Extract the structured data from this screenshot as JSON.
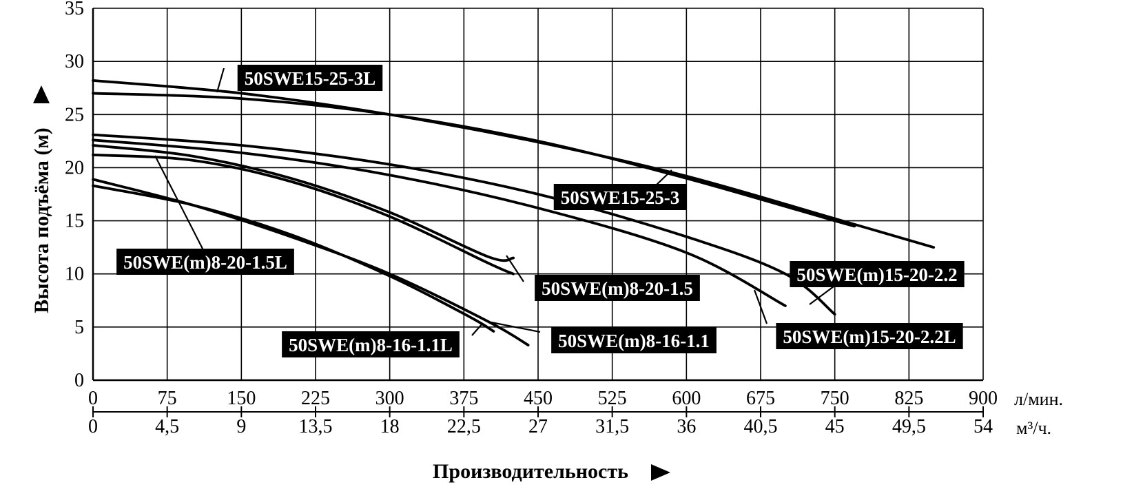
{
  "chart_data": {
    "type": "line",
    "xlabel": "Производительность",
    "ylabel": "Высота подъёма (м)",
    "x_unit_primary": "л/мин.",
    "x_unit_secondary": "м³/ч.",
    "x_ticks_primary": [
      "0",
      "75",
      "150",
      "225",
      "300",
      "375",
      "450",
      "525",
      "600",
      "675",
      "750",
      "825",
      "900"
    ],
    "x_ticks_secondary": [
      "0",
      "4,5",
      "9",
      "13,5",
      "18",
      "22,5",
      "27",
      "31,5",
      "36",
      "40,5",
      "45",
      "49,5",
      "54"
    ],
    "y_ticks": [
      "0",
      "5",
      "10",
      "15",
      "20",
      "25",
      "30",
      "35"
    ],
    "xlim": [
      0,
      900
    ],
    "ylim": [
      0,
      35
    ],
    "grid": true,
    "series": [
      {
        "name": "50SWE15-25-3L",
        "x": [
          0,
          150,
          300,
          450,
          600,
          750,
          770
        ],
        "y": [
          27.0,
          26.5,
          25.0,
          22.5,
          19.0,
          15.0,
          14.5
        ]
      },
      {
        "name": "50SWE15-25-3",
        "x": [
          0,
          150,
          300,
          450,
          600,
          750,
          850
        ],
        "y": [
          28.2,
          27.0,
          25.0,
          22.4,
          19.2,
          15.2,
          12.5
        ]
      },
      {
        "name": "50SWE(m)15-20-2.2",
        "x": [
          0,
          150,
          300,
          450,
          600,
          700,
          750
        ],
        "y": [
          23.1,
          22.1,
          20.3,
          17.5,
          13.5,
          10.0,
          6.2
        ]
      },
      {
        "name": "50SWE(m)15-20-2.2L",
        "x": [
          0,
          150,
          300,
          450,
          600,
          700
        ],
        "y": [
          22.6,
          21.4,
          19.3,
          16.2,
          12.0,
          7.0
        ]
      },
      {
        "name": "50SWE(m)8-20-1.5",
        "x": [
          0,
          100,
          200,
          300,
          400,
          425
        ],
        "y": [
          22.1,
          21.1,
          19.0,
          15.8,
          11.6,
          11.5
        ]
      },
      {
        "name": "50SWE(m)8-20-1.5L",
        "x": [
          0,
          100,
          200,
          300,
          400,
          425
        ],
        "y": [
          21.2,
          20.7,
          18.7,
          15.4,
          11.0,
          10.0
        ]
      },
      {
        "name": "50SWE(m)8-16-1.1",
        "x": [
          0,
          100,
          200,
          300,
          400,
          440
        ],
        "y": [
          18.9,
          16.5,
          13.5,
          10.0,
          5.5,
          3.3
        ]
      },
      {
        "name": "50SWE(m)8-16-1.1L",
        "x": [
          0,
          100,
          200,
          300,
          380,
          405
        ],
        "y": [
          18.3,
          16.5,
          13.7,
          9.8,
          6.0,
          4.6
        ]
      }
    ]
  },
  "labels": {
    "s0": "50SWE15-25-3L",
    "s1": "50SWE15-25-3",
    "s2": "50SWE(m)15-20-2.2",
    "s3": "50SWE(m)15-20-2.2L",
    "s4": "50SWE(m)8-20-1.5",
    "s5": "50SWE(m)8-20-1.5L",
    "s6": "50SWE(m)8-16-1.1",
    "s7": "50SWE(m)8-16-1.1L"
  }
}
